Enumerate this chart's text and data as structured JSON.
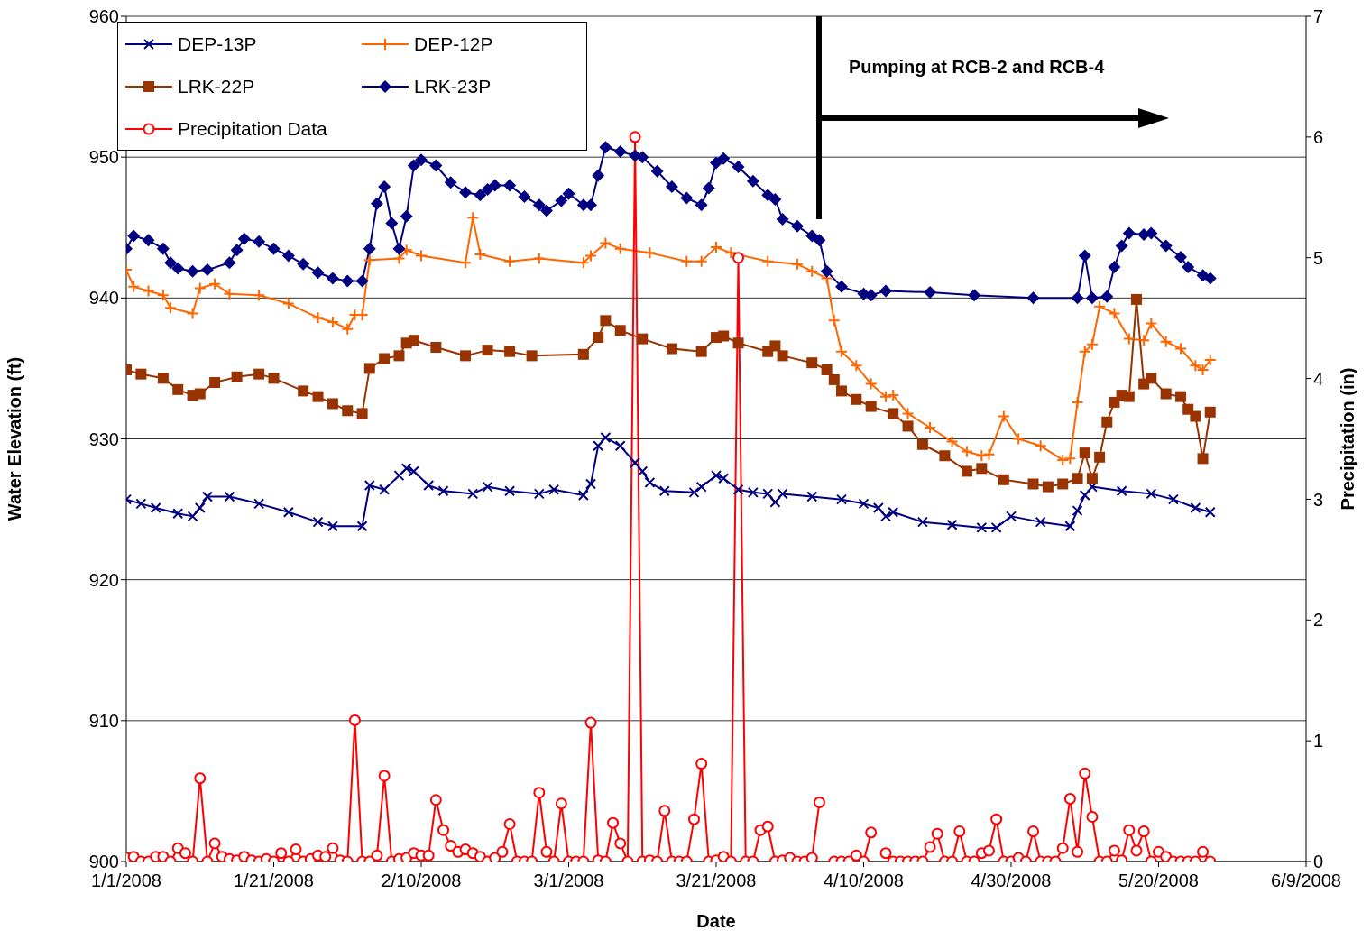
{
  "chart_data": {
    "type": "line",
    "xlabel": "Date",
    "ylabel": "Water Elevation (ft)",
    "y2label": "Precipitation (in)",
    "xlim": [
      "2008-01-01",
      "2008-06-09"
    ],
    "xticks": [
      {
        "value": "2008-01-01",
        "label": "1/1/2008"
      },
      {
        "value": "2008-01-21",
        "label": "1/21/2008"
      },
      {
        "value": "2008-02-10",
        "label": "2/10/2008"
      },
      {
        "value": "2008-03-01",
        "label": "3/1/2008"
      },
      {
        "value": "2008-03-21",
        "label": "3/21/2008"
      },
      {
        "value": "2008-04-10",
        "label": "4/10/2008"
      },
      {
        "value": "2008-04-30",
        "label": "4/30/2008"
      },
      {
        "value": "2008-05-20",
        "label": "5/20/2008"
      },
      {
        "value": "2008-06-09",
        "label": "6/9/2008"
      }
    ],
    "ylim": [
      900,
      960
    ],
    "yticks": [
      900,
      910,
      920,
      930,
      940,
      950,
      960
    ],
    "y2lim": [
      0,
      7
    ],
    "y2ticks": [
      0,
      1,
      2,
      3,
      4,
      5,
      6,
      7
    ],
    "grid": "y",
    "legend": "top left",
    "annotations": [
      "Pumping at RCB-2 and RCB-4"
    ],
    "x": [
      "2008-01-01",
      "2008-01-02",
      "2008-01-03",
      "2008-01-04",
      "2008-01-05",
      "2008-01-06",
      "2008-01-07",
      "2008-01-08",
      "2008-01-09",
      "2008-01-10",
      "2008-01-11",
      "2008-01-12",
      "2008-01-13",
      "2008-01-14",
      "2008-01-15",
      "2008-01-16",
      "2008-01-17",
      "2008-01-18",
      "2008-01-19",
      "2008-01-20",
      "2008-01-21",
      "2008-01-22",
      "2008-01-23",
      "2008-01-24",
      "2008-01-25",
      "2008-01-26",
      "2008-01-27",
      "2008-01-28",
      "2008-01-29",
      "2008-01-30",
      "2008-01-31",
      "2008-02-01",
      "2008-02-02",
      "2008-02-03",
      "2008-02-04",
      "2008-02-05",
      "2008-02-06",
      "2008-02-07",
      "2008-02-08",
      "2008-02-09",
      "2008-02-10",
      "2008-02-11",
      "2008-02-12",
      "2008-02-13",
      "2008-02-14",
      "2008-02-15",
      "2008-02-16",
      "2008-02-17",
      "2008-02-18",
      "2008-02-19",
      "2008-02-20",
      "2008-02-21",
      "2008-02-22",
      "2008-02-23",
      "2008-02-24",
      "2008-02-25",
      "2008-02-26",
      "2008-02-27",
      "2008-02-28",
      "2008-02-29",
      "2008-03-01",
      "2008-03-02",
      "2008-03-03",
      "2008-03-04",
      "2008-03-05",
      "2008-03-06",
      "2008-03-07",
      "2008-03-08",
      "2008-03-09",
      "2008-03-10",
      "2008-03-11",
      "2008-03-12",
      "2008-03-13",
      "2008-03-14",
      "2008-03-15",
      "2008-03-16",
      "2008-03-17",
      "2008-03-18",
      "2008-03-19",
      "2008-03-20",
      "2008-03-21",
      "2008-03-22",
      "2008-03-23",
      "2008-03-24",
      "2008-03-25",
      "2008-03-26",
      "2008-03-27",
      "2008-03-28",
      "2008-03-29",
      "2008-03-30",
      "2008-03-31",
      "2008-04-01",
      "2008-04-02",
      "2008-04-03",
      "2008-04-04",
      "2008-04-05",
      "2008-04-06",
      "2008-04-07",
      "2008-04-08",
      "2008-04-09",
      "2008-04-10",
      "2008-04-11",
      "2008-04-12",
      "2008-04-13",
      "2008-04-14",
      "2008-04-15",
      "2008-04-16",
      "2008-04-17",
      "2008-04-18",
      "2008-04-19",
      "2008-04-20",
      "2008-04-21",
      "2008-04-22",
      "2008-04-23",
      "2008-04-24",
      "2008-04-25",
      "2008-04-26",
      "2008-04-27",
      "2008-04-28",
      "2008-04-29",
      "2008-04-30",
      "2008-05-01",
      "2008-05-02",
      "2008-05-03",
      "2008-05-04",
      "2008-05-05",
      "2008-05-06",
      "2008-05-07",
      "2008-05-08",
      "2008-05-09",
      "2008-05-10",
      "2008-05-11",
      "2008-05-12",
      "2008-05-13",
      "2008-05-14",
      "2008-05-15",
      "2008-05-16",
      "2008-05-17",
      "2008-05-18",
      "2008-05-19",
      "2008-05-20",
      "2008-05-21",
      "2008-05-22",
      "2008-05-23",
      "2008-05-24",
      "2008-05-25",
      "2008-05-26",
      "2008-05-27"
    ],
    "series": [
      {
        "name": "DEP-13P",
        "color": "#000080",
        "marker": "x",
        "x": [
          "2008-01-01",
          "2008-01-03",
          "2008-01-05",
          "2008-01-08",
          "2008-01-10",
          "2008-01-11",
          "2008-01-12",
          "2008-01-15",
          "2008-01-19",
          "2008-01-23",
          "2008-01-27",
          "2008-01-29",
          "2008-02-02",
          "2008-02-03",
          "2008-02-05",
          "2008-02-07",
          "2008-02-08",
          "2008-02-09",
          "2008-02-11",
          "2008-02-13",
          "2008-02-17",
          "2008-02-19",
          "2008-02-22",
          "2008-02-26",
          "2008-02-28",
          "2008-03-03",
          "2008-03-04",
          "2008-03-05",
          "2008-03-06",
          "2008-03-08",
          "2008-03-10",
          "2008-03-11",
          "2008-03-12",
          "2008-03-14",
          "2008-03-18",
          "2008-03-19",
          "2008-03-21",
          "2008-03-22",
          "2008-03-24",
          "2008-03-26",
          "2008-03-28",
          "2008-03-29",
          "2008-03-30",
          "2008-04-03",
          "2008-04-07",
          "2008-04-10",
          "2008-04-12",
          "2008-04-13",
          "2008-04-14",
          "2008-04-18",
          "2008-04-22",
          "2008-04-26",
          "2008-04-28",
          "2008-04-30",
          "2008-05-04",
          "2008-05-08",
          "2008-05-09",
          "2008-05-10",
          "2008-05-11",
          "2008-05-15",
          "2008-05-19",
          "2008-05-22",
          "2008-05-25",
          "2008-05-27"
        ],
        "values": [
          925.7,
          925.4,
          925.1,
          924.7,
          924.5,
          925.1,
          925.9,
          925.9,
          925.4,
          924.8,
          924.1,
          923.8,
          923.8,
          926.7,
          926.4,
          927.4,
          927.9,
          927.7,
          926.7,
          926.3,
          926.1,
          926.6,
          926.3,
          926.1,
          926.4,
          926.0,
          926.8,
          929.5,
          930.1,
          929.5,
          928.3,
          927.7,
          926.9,
          926.3,
          926.2,
          926.6,
          927.4,
          927.2,
          926.4,
          926.2,
          926.1,
          925.5,
          926.1,
          925.9,
          925.7,
          925.4,
          925.1,
          924.5,
          924.8,
          924.1,
          923.9,
          923.7,
          923.7,
          924.5,
          924.1,
          923.8,
          924.9,
          926.0,
          926.6,
          926.3,
          926.1,
          925.7,
          925.1,
          924.8
        ]
      },
      {
        "name": "DEP-12P",
        "color": "#ff6600",
        "marker": "cross",
        "x": [
          "2008-01-01",
          "2008-01-02",
          "2008-01-04",
          "2008-01-06",
          "2008-01-07",
          "2008-01-10",
          "2008-01-11",
          "2008-01-13",
          "2008-01-15",
          "2008-01-19",
          "2008-01-23",
          "2008-01-27",
          "2008-01-29",
          "2008-01-31",
          "2008-02-01",
          "2008-02-02",
          "2008-02-03",
          "2008-02-07",
          "2008-02-08",
          "2008-02-10",
          "2008-02-16",
          "2008-02-17",
          "2008-02-18",
          "2008-02-22",
          "2008-02-26",
          "2008-03-03",
          "2008-03-04",
          "2008-03-06",
          "2008-03-08",
          "2008-03-12",
          "2008-03-17",
          "2008-03-19",
          "2008-03-21",
          "2008-03-23",
          "2008-03-28",
          "2008-04-01",
          "2008-04-03",
          "2008-04-05",
          "2008-04-06",
          "2008-04-07",
          "2008-04-09",
          "2008-04-11",
          "2008-04-13",
          "2008-04-14",
          "2008-04-16",
          "2008-04-19",
          "2008-04-22",
          "2008-04-24",
          "2008-04-26",
          "2008-04-27",
          "2008-04-29",
          "2008-05-01",
          "2008-05-04",
          "2008-05-07",
          "2008-05-08",
          "2008-05-09",
          "2008-05-10",
          "2008-05-11",
          "2008-05-12",
          "2008-05-14",
          "2008-05-16",
          "2008-05-18",
          "2008-05-19",
          "2008-05-21",
          "2008-05-23",
          "2008-05-25",
          "2008-05-26",
          "2008-05-27"
        ],
        "values": [
          942.0,
          940.8,
          940.5,
          940.2,
          939.3,
          938.9,
          940.7,
          941.0,
          940.3,
          940.2,
          939.6,
          938.6,
          938.3,
          937.8,
          938.8,
          938.8,
          942.7,
          942.8,
          943.4,
          943.0,
          942.5,
          945.7,
          943.1,
          942.6,
          942.8,
          942.5,
          943.0,
          943.9,
          943.5,
          943.2,
          942.6,
          942.6,
          943.6,
          943.2,
          942.6,
          942.4,
          941.9,
          941.4,
          938.4,
          936.2,
          935.2,
          933.9,
          933.0,
          933.1,
          931.8,
          930.8,
          929.8,
          929.1,
          928.8,
          928.9,
          931.6,
          930.0,
          929.5,
          928.5,
          928.6,
          932.6,
          936.2,
          936.7,
          939.4,
          938.9,
          937.1,
          937.0,
          938.2,
          936.9,
          936.4,
          935.2,
          934.9,
          935.6
        ]
      },
      {
        "name": "LRK-22P",
        "color": "#993300",
        "marker": "square",
        "x": [
          "2008-01-01",
          "2008-01-03",
          "2008-01-06",
          "2008-01-08",
          "2008-01-10",
          "2008-01-11",
          "2008-01-13",
          "2008-01-16",
          "2008-01-19",
          "2008-01-21",
          "2008-01-25",
          "2008-01-27",
          "2008-01-29",
          "2008-01-31",
          "2008-02-02",
          "2008-02-03",
          "2008-02-05",
          "2008-02-07",
          "2008-02-08",
          "2008-02-09",
          "2008-02-12",
          "2008-02-16",
          "2008-02-19",
          "2008-02-22",
          "2008-02-25",
          "2008-03-03",
          "2008-03-05",
          "2008-03-06",
          "2008-03-08",
          "2008-03-11",
          "2008-03-15",
          "2008-03-19",
          "2008-03-21",
          "2008-03-22",
          "2008-03-24",
          "2008-03-28",
          "2008-03-29",
          "2008-03-30",
          "2008-04-03",
          "2008-04-05",
          "2008-04-06",
          "2008-04-07",
          "2008-04-09",
          "2008-04-11",
          "2008-04-14",
          "2008-04-16",
          "2008-04-18",
          "2008-04-21",
          "2008-04-24",
          "2008-04-26",
          "2008-04-29",
          "2008-05-03",
          "2008-05-05",
          "2008-05-07",
          "2008-05-09",
          "2008-05-10",
          "2008-05-11",
          "2008-05-12",
          "2008-05-13",
          "2008-05-14",
          "2008-05-15",
          "2008-05-16",
          "2008-05-17",
          "2008-05-18",
          "2008-05-19",
          "2008-05-21",
          "2008-05-23",
          "2008-05-24",
          "2008-05-25",
          "2008-05-26",
          "2008-05-27"
        ],
        "values": [
          934.9,
          934.6,
          934.3,
          933.5,
          933.1,
          933.2,
          934.0,
          934.4,
          934.6,
          934.3,
          933.4,
          933.0,
          932.5,
          932.0,
          931.8,
          935.0,
          935.7,
          935.9,
          936.8,
          937.0,
          936.5,
          935.9,
          936.3,
          936.2,
          935.9,
          936.0,
          937.2,
          938.4,
          937.7,
          937.1,
          936.4,
          936.2,
          937.2,
          937.3,
          936.8,
          936.2,
          936.6,
          935.9,
          935.4,
          934.9,
          934.2,
          933.4,
          932.8,
          932.3,
          931.8,
          930.9,
          929.6,
          928.8,
          927.7,
          927.9,
          927.1,
          926.8,
          926.6,
          926.8,
          927.2,
          929.0,
          927.2,
          928.7,
          931.2,
          932.6,
          933.1,
          933.0,
          939.9,
          933.9,
          934.3,
          933.2,
          933.0,
          932.1,
          931.6,
          928.6,
          931.9
        ]
      },
      {
        "name": "LRK-23P",
        "color": "#000080",
        "marker": "diamond",
        "x": [
          "2008-01-01",
          "2008-01-02",
          "2008-01-04",
          "2008-01-06",
          "2008-01-07",
          "2008-01-08",
          "2008-01-10",
          "2008-01-12",
          "2008-01-15",
          "2008-01-16",
          "2008-01-17",
          "2008-01-19",
          "2008-01-21",
          "2008-01-23",
          "2008-01-25",
          "2008-01-27",
          "2008-01-29",
          "2008-01-31",
          "2008-02-02",
          "2008-02-03",
          "2008-02-04",
          "2008-02-05",
          "2008-02-06",
          "2008-02-07",
          "2008-02-08",
          "2008-02-09",
          "2008-02-10",
          "2008-02-12",
          "2008-02-14",
          "2008-02-16",
          "2008-02-18",
          "2008-02-19",
          "2008-02-20",
          "2008-02-22",
          "2008-02-24",
          "2008-02-26",
          "2008-02-27",
          "2008-02-29",
          "2008-03-01",
          "2008-03-03",
          "2008-03-04",
          "2008-03-05",
          "2008-03-06",
          "2008-03-08",
          "2008-03-10",
          "2008-03-11",
          "2008-03-13",
          "2008-03-15",
          "2008-03-17",
          "2008-03-19",
          "2008-03-20",
          "2008-03-21",
          "2008-03-22",
          "2008-03-24",
          "2008-03-26",
          "2008-03-28",
          "2008-03-29",
          "2008-03-30",
          "2008-04-01",
          "2008-04-03",
          "2008-04-04",
          "2008-04-05",
          "2008-04-07",
          "2008-04-10",
          "2008-04-11",
          "2008-04-13",
          "2008-04-19",
          "2008-04-25",
          "2008-05-03",
          "2008-05-09",
          "2008-05-10",
          "2008-05-11",
          "2008-05-13",
          "2008-05-14",
          "2008-05-15",
          "2008-05-16",
          "2008-05-18",
          "2008-05-19",
          "2008-05-21",
          "2008-05-23",
          "2008-05-24",
          "2008-05-26",
          "2008-05-27"
        ],
        "values": [
          943.5,
          944.4,
          944.1,
          943.5,
          942.5,
          942.1,
          941.9,
          942.0,
          942.5,
          943.4,
          944.2,
          944.0,
          943.5,
          943.0,
          942.4,
          941.8,
          941.4,
          941.2,
          941.2,
          943.5,
          946.7,
          947.9,
          945.3,
          943.5,
          945.8,
          949.4,
          949.8,
          949.4,
          948.2,
          947.5,
          947.3,
          947.7,
          948.0,
          948.0,
          947.2,
          946.6,
          946.2,
          946.9,
          947.4,
          946.6,
          946.6,
          948.7,
          950.7,
          950.4,
          950.1,
          950.0,
          949.0,
          947.9,
          947.1,
          946.6,
          947.8,
          949.6,
          949.9,
          949.3,
          948.3,
          947.3,
          947.0,
          945.6,
          945.1,
          944.4,
          944.1,
          941.9,
          940.8,
          940.3,
          940.2,
          940.5,
          940.4,
          940.2,
          940.0,
          940.0,
          943.0,
          940.0,
          940.1,
          942.2,
          943.7,
          944.6,
          944.5,
          944.6,
          943.7,
          942.9,
          942.2,
          941.6,
          941.4
        ]
      },
      {
        "name": "Precipitation Data",
        "color": "#ff0000",
        "marker": "circle",
        "axis": "y2",
        "values": [
          0.03,
          0.04,
          0,
          0,
          0.04,
          0.04,
          0,
          0.11,
          0.07,
          0,
          0.69,
          0,
          0.15,
          0.04,
          0.02,
          0.01,
          0.04,
          0.01,
          0,
          0.02,
          0,
          0.07,
          0,
          0.1,
          0,
          0.02,
          0.05,
          0.04,
          0.11,
          0.01,
          0,
          1.17,
          0,
          0,
          0.05,
          0.71,
          0,
          0.02,
          0.03,
          0.07,
          0.05,
          0.05,
          0.51,
          0.26,
          0.13,
          0.08,
          0.1,
          0.07,
          0.04,
          0,
          0.03,
          0.08,
          0.31,
          0,
          0,
          0,
          0.57,
          0.08,
          0,
          0.48,
          0,
          0,
          0,
          1.15,
          0.01,
          0,
          0.32,
          0.15,
          0,
          6.0,
          0,
          0.01,
          0,
          0.42,
          0,
          0,
          0,
          0.35,
          0.81,
          0,
          0.01,
          0.04,
          0,
          5.0,
          0,
          0,
          0.26,
          0.29,
          0,
          0.01,
          0.03,
          0,
          0,
          0.03,
          0.49,
          null,
          0,
          0,
          0,
          0.05,
          0,
          0.24,
          null,
          0.07,
          0,
          0,
          0,
          0,
          0,
          0.12,
          0.23,
          0,
          0,
          0.25,
          0,
          0,
          0.07,
          0.09,
          0.35,
          0,
          0,
          0.03,
          0,
          0.25,
          0,
          0,
          0,
          0.11,
          0.52,
          0.08,
          0.73,
          0.37,
          0,
          0,
          0.09,
          0.01,
          0.26,
          0.09,
          0.25,
          0,
          0.08,
          0.04,
          0,
          0,
          0,
          0,
          0.08,
          0
        ]
      }
    ]
  }
}
